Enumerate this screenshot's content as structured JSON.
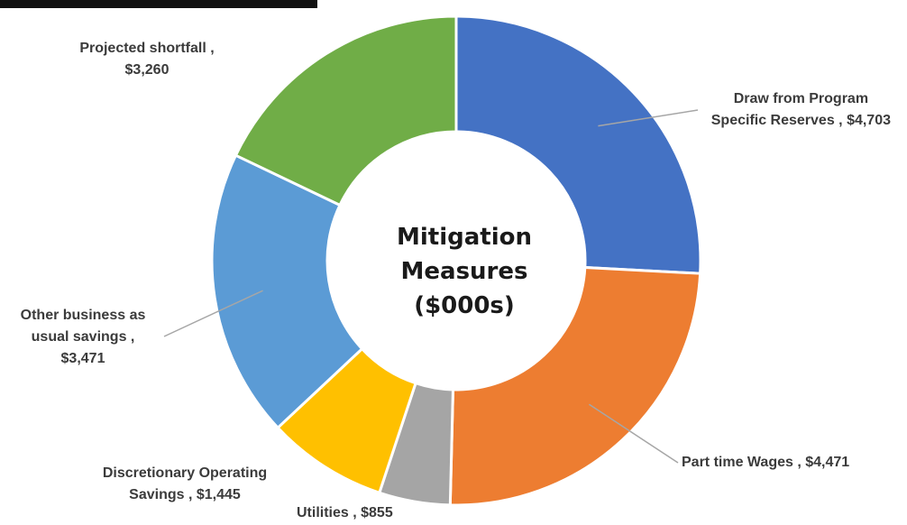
{
  "colors": {
    "draw_from_reserves": "#4472c4",
    "part_time_wages": "#ed7d31",
    "utilities": "#a5a5a5",
    "discretionary": "#ffc000",
    "other_business": "#5b9bd5",
    "shortfall": "#70ad47",
    "leader_line": "#a6a6a6"
  },
  "chart_data": {
    "type": "pie",
    "style": "doughnut",
    "title": "Mitigation Measures ($000s)",
    "center_title_lines": [
      "Mitigation",
      "Measures",
      "($000s)"
    ],
    "slices": [
      {
        "key": "draw_from_reserves",
        "category": "Draw from Program Specific Reserves",
        "value": 4703,
        "label_lines": [
          "Draw from Program",
          "Specific Reserves , $4,703"
        ]
      },
      {
        "key": "part_time_wages",
        "category": "Part time Wages",
        "value": 4471,
        "label_lines": [
          "Part time Wages , $4,471"
        ]
      },
      {
        "key": "utilities",
        "category": "Utilities",
        "value": 855,
        "label_lines": [
          "Utilities , $855"
        ]
      },
      {
        "key": "discretionary",
        "category": "Discretionary Operating Savings",
        "value": 1445,
        "label_lines": [
          "Discretionary Operating",
          "Savings , $1,445"
        ]
      },
      {
        "key": "other_business",
        "category": "Other business as usual savings",
        "value": 3471,
        "label_lines": [
          "Other business as",
          "usual savings ,",
          "$3,471"
        ]
      },
      {
        "key": "shortfall",
        "category": "Projected shortfall",
        "value": 3260,
        "label_lines": [
          "Projected shortfall ,",
          "$3,260"
        ]
      }
    ],
    "legend": "none",
    "data_labels": "outside with leader lines"
  }
}
